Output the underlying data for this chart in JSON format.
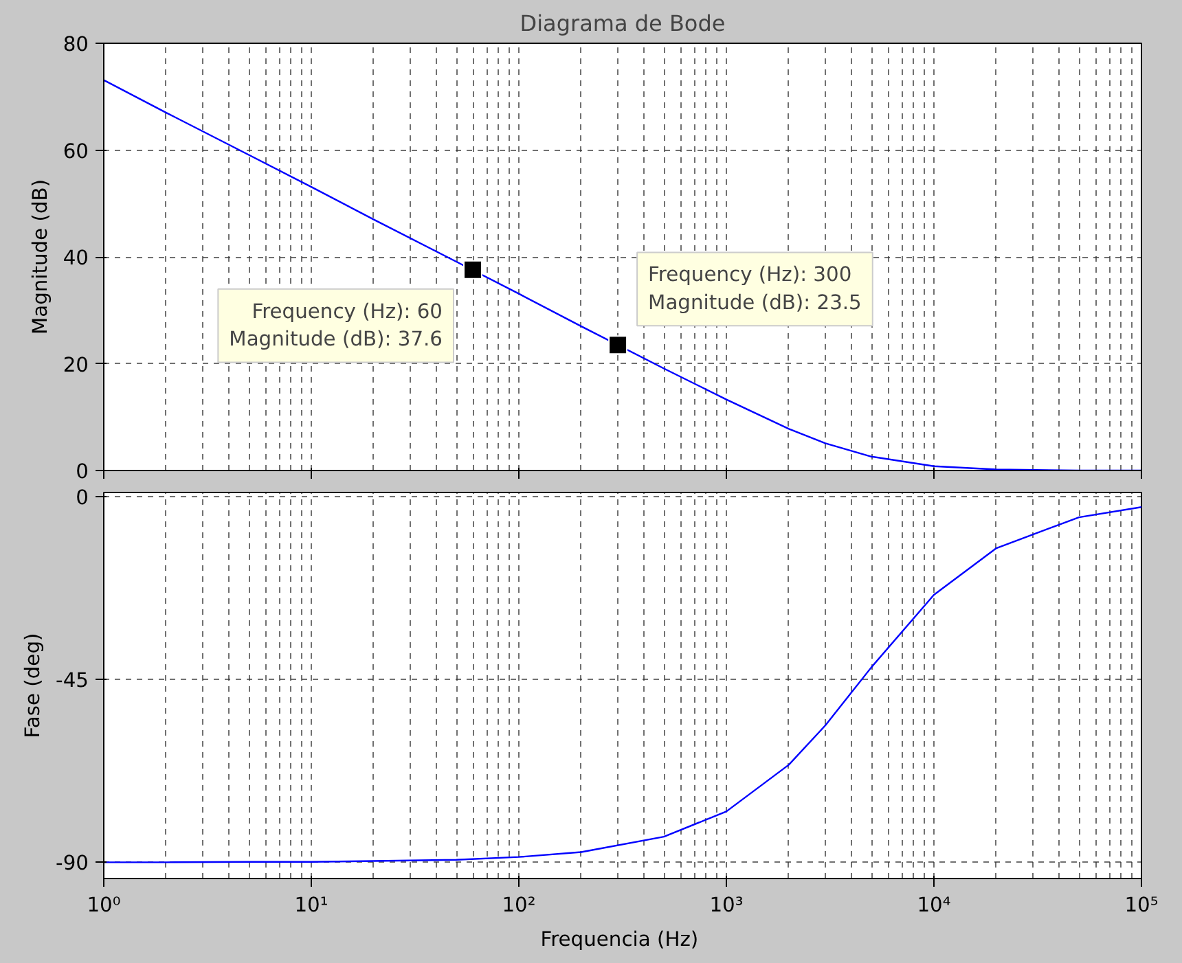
{
  "chart_data": [
    {
      "type": "line",
      "title": "Diagrama de Bode",
      "ylabel": "Magnitude (dB)",
      "log": "x",
      "x": [
        1,
        2,
        5,
        10,
        20,
        50,
        100,
        200,
        500,
        1000,
        2000,
        3000,
        5000,
        10000,
        20000,
        50000,
        100000
      ],
      "series": [
        {
          "color": "#0000ff",
          "values": [
            73.1,
            67.0,
            59.1,
            53.1,
            47.0,
            39.1,
            33.1,
            27.0,
            19.1,
            13.3,
            7.8,
            5.1,
            2.6,
            0.8,
            0.2,
            0.0,
            0.0
          ]
        }
      ],
      "xlim": [
        1,
        100000
      ],
      "xticks": [
        {
          "value": 1,
          "label": null
        },
        {
          "value": 10,
          "label": null
        },
        {
          "value": 100,
          "label": null
        },
        {
          "value": 1000,
          "label": null
        },
        {
          "value": 10000,
          "label": null
        },
        {
          "value": 100000,
          "label": null
        }
      ],
      "ylim": [
        0,
        80
      ],
      "yticks": [
        0,
        20,
        40,
        60,
        80
      ],
      "grid": true,
      "tick_labels": "y",
      "line_style": "solid",
      "annotations": [
        {
          "text": "Frequency (Hz): 60\nMagnitude (dB): 37.6",
          "x": 60,
          "y": 37.6
        },
        {
          "text": "Frequency (Hz): 300\nMagnitude (dB): 23.5",
          "x": 300,
          "y": 23.5
        }
      ]
    },
    {
      "type": "line",
      "xlabel": "Frequencia  (Hz)",
      "ylabel": "Fase (deg)",
      "log": "x",
      "x": [
        1,
        2,
        5,
        10,
        20,
        50,
        100,
        200,
        500,
        1000,
        2000,
        3000,
        5000,
        10000,
        20000,
        50000,
        100000
      ],
      "series": [
        {
          "color": "#0000ff",
          "values": [
            -90,
            -90,
            -89.9,
            -89.9,
            -89.7,
            -89.4,
            -88.7,
            -87.5,
            -83.7,
            -77.5,
            -66.0,
            -56.3,
            -42.0,
            -24.2,
            -12.7,
            -5.1,
            -2.6
          ]
        }
      ],
      "xlim": [
        1,
        100000
      ],
      "xticks": [
        {
          "value": 1,
          "label": "10⁰"
        },
        {
          "value": 10,
          "label": "10¹"
        },
        {
          "value": 100,
          "label": "10²"
        },
        {
          "value": 1000,
          "label": "10³"
        },
        {
          "value": 10000,
          "label": "10⁴"
        },
        {
          "value": 100000,
          "label": "10⁵"
        }
      ],
      "ylim": [
        -94,
        1
      ],
      "yticks": [
        -90,
        -45,
        0
      ],
      "grid": true,
      "line_style": "solid"
    }
  ]
}
